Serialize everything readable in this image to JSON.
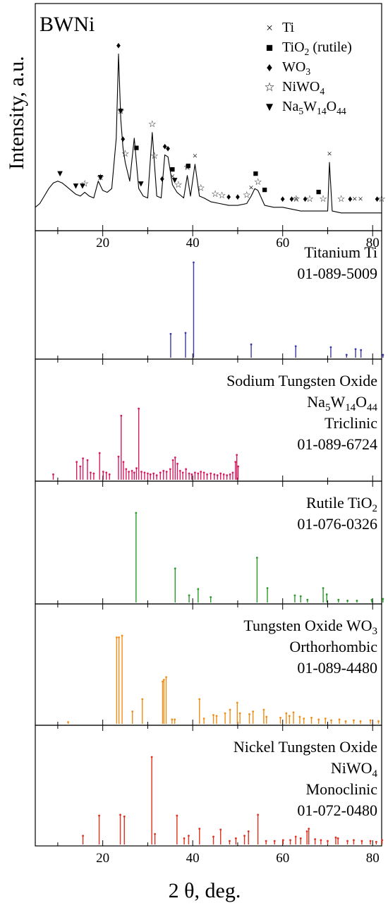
{
  "figure": {
    "x_label": "2 θ, deg.",
    "x_ticks": [
      20,
      40,
      60,
      80
    ]
  },
  "chart_data": {
    "type": "line",
    "xlim": [
      5,
      82
    ],
    "xlabel": "2 θ, deg.",
    "main": {
      "title": "BWNi",
      "ylabel": "Intensity, a.u.",
      "series": [
        {
          "name": "BWNi",
          "x": [
            5,
            6,
            7,
            8,
            9,
            10,
            11,
            12,
            13,
            14,
            15,
            16,
            17,
            18,
            19,
            20,
            21,
            22,
            23,
            23.5,
            24,
            24.5,
            25,
            26,
            27,
            28,
            29,
            30,
            31,
            32,
            33,
            33.8,
            34.5,
            35.5,
            36.5,
            38,
            38.8,
            39.5,
            40.5,
            41.5,
            42.5,
            44,
            46,
            48,
            50,
            52,
            53,
            53.8,
            54.5,
            56,
            58,
            60,
            62,
            64,
            66,
            68,
            70,
            70.4,
            71,
            73,
            75,
            77,
            79,
            81,
            82
          ],
          "y": [
            8,
            10,
            14,
            18,
            21,
            22,
            21,
            19,
            17,
            15,
            14,
            16,
            14,
            13,
            22,
            17,
            16,
            18,
            45,
            90,
            55,
            40,
            32,
            22,
            45,
            18,
            14,
            13,
            48,
            14,
            13,
            36,
            35,
            20,
            16,
            13,
            25,
            14,
            31,
            14,
            13,
            11,
            10,
            9,
            9,
            10,
            14,
            18,
            17,
            9,
            8,
            8,
            7,
            6,
            6,
            6,
            6,
            32,
            6,
            5,
            5,
            5,
            5,
            5,
            5
          ]
        }
      ],
      "legend": [
        {
          "marker": "×",
          "label": "Ti"
        },
        {
          "marker": "■",
          "label": "TiO",
          "sub": "2",
          "tail": " (rutile)"
        },
        {
          "marker": "♦",
          "label": "WO",
          "sub": "3",
          "tail": ""
        },
        {
          "marker": "☆",
          "label": "NiWO",
          "sub": "4",
          "tail": ""
        },
        {
          "marker": "▼",
          "label": "Na",
          "sub": "5",
          "mid": "W",
          "sub2": "14",
          "mid2": "O",
          "sub3": "44"
        }
      ],
      "annotations": [
        {
          "marker": "×",
          "x": [
            35.5,
            38.8,
            40.5,
            53,
            63,
            70.4,
            76,
            77.3
          ]
        },
        {
          "marker": "■",
          "x": [
            27.5,
            35.5,
            39,
            54,
            56,
            68
          ]
        },
        {
          "marker": "♦",
          "x": [
            23.5,
            24.5,
            33.2,
            33.8,
            34.5,
            48,
            50,
            60,
            62,
            65,
            75,
            81
          ]
        },
        {
          "marker": "☆",
          "x": [
            16,
            19.5,
            24,
            25,
            31,
            31.5,
            36.8,
            38.8,
            41.8,
            45,
            46.5,
            52,
            54.5,
            63,
            66,
            69,
            73,
            82
          ]
        },
        {
          "marker": "▼",
          "x": [
            10.5,
            14,
            15.5,
            19.5,
            24,
            28.5,
            36
          ]
        }
      ]
    },
    "references": [
      {
        "name_lines": [
          [
            "Titanium Ti"
          ],
          [
            "01-089-5009"
          ]
        ],
        "color": "#3a3aa8",
        "sticks": [
          [
            35.1,
            25
          ],
          [
            38.4,
            26
          ],
          [
            40.2,
            100
          ],
          [
            53.0,
            14
          ],
          [
            62.9,
            12
          ],
          [
            70.7,
            11
          ],
          [
            74.2,
            3
          ],
          [
            76.2,
            9
          ],
          [
            77.4,
            8
          ],
          [
            82.3,
            3
          ]
        ]
      },
      {
        "name_lines": [
          [
            "Sodium Tungsten Oxide"
          ],
          [
            "Na",
            "5",
            "W",
            "14",
            "O",
            "44"
          ],
          [
            "Triclinic"
          ],
          [
            "01-089-6724"
          ]
        ],
        "color": "#d81b60",
        "sticks": [
          [
            9.0,
            6
          ],
          [
            14.2,
            20
          ],
          [
            15.0,
            15
          ],
          [
            15.6,
            24
          ],
          [
            16.6,
            22
          ],
          [
            17.3,
            8
          ],
          [
            18.0,
            7
          ],
          [
            19.3,
            30
          ],
          [
            20.1,
            9
          ],
          [
            20.8,
            8
          ],
          [
            21.5,
            6
          ],
          [
            23.5,
            26
          ],
          [
            24.1,
            72
          ],
          [
            24.6,
            20
          ],
          [
            25.2,
            12
          ],
          [
            25.8,
            9
          ],
          [
            26.5,
            10
          ],
          [
            27.0,
            8
          ],
          [
            27.5,
            13
          ],
          [
            28.0,
            80
          ],
          [
            28.6,
            9
          ],
          [
            29.3,
            8
          ],
          [
            30.0,
            7
          ],
          [
            30.6,
            6
          ],
          [
            31.3,
            7
          ],
          [
            32.0,
            5
          ],
          [
            32.8,
            8
          ],
          [
            33.5,
            10
          ],
          [
            34.2,
            9
          ],
          [
            35.0,
            12
          ],
          [
            35.6,
            22
          ],
          [
            36.1,
            25
          ],
          [
            36.6,
            18
          ],
          [
            37.2,
            10
          ],
          [
            37.8,
            8
          ],
          [
            38.5,
            12
          ],
          [
            39.2,
            7
          ],
          [
            39.8,
            6
          ],
          [
            40.5,
            8
          ],
          [
            41.2,
            7
          ],
          [
            41.8,
            9
          ],
          [
            42.5,
            8
          ],
          [
            43.2,
            6
          ],
          [
            44.0,
            7
          ],
          [
            44.8,
            6
          ],
          [
            45.5,
            5
          ],
          [
            46.2,
            7
          ],
          [
            46.9,
            6
          ],
          [
            47.6,
            5
          ],
          [
            48.3,
            6
          ],
          [
            48.9,
            8
          ],
          [
            49.5,
            20
          ],
          [
            49.8,
            28
          ],
          [
            50.1,
            15
          ]
        ]
      },
      {
        "name_lines": [
          [
            "Rutile TiO",
            "2"
          ],
          [
            "01-076-0326"
          ]
        ],
        "color": "#2b9a2b",
        "sticks": [
          [
            27.4,
            100
          ],
          [
            36.1,
            38
          ],
          [
            39.2,
            8
          ],
          [
            41.2,
            15
          ],
          [
            44.0,
            6
          ],
          [
            54.3,
            50
          ],
          [
            56.6,
            16
          ],
          [
            62.7,
            8
          ],
          [
            64.0,
            7
          ],
          [
            65.5,
            3
          ],
          [
            69.0,
            16
          ],
          [
            69.8,
            9
          ],
          [
            72.4,
            3
          ],
          [
            74.4,
            2
          ],
          [
            76.5,
            2
          ],
          [
            79.8,
            3
          ],
          [
            82.3,
            4
          ]
        ]
      },
      {
        "name_lines": [
          [
            "Tungsten Oxide WO",
            "3"
          ],
          [
            "Orthorhombic"
          ],
          [
            "01-089-4480"
          ]
        ],
        "color": "#f28c14",
        "sticks": [
          [
            12.3,
            2
          ],
          [
            23.1,
            98
          ],
          [
            23.6,
            98
          ],
          [
            24.3,
            100
          ],
          [
            26.6,
            14
          ],
          [
            28.8,
            28
          ],
          [
            33.3,
            48
          ],
          [
            33.6,
            50
          ],
          [
            34.1,
            53
          ],
          [
            35.4,
            5
          ],
          [
            36.0,
            5
          ],
          [
            41.5,
            28
          ],
          [
            42.5,
            6
          ],
          [
            44.6,
            10
          ],
          [
            45.3,
            9
          ],
          [
            47.2,
            12
          ],
          [
            48.3,
            16
          ],
          [
            49.9,
            24
          ],
          [
            50.5,
            12
          ],
          [
            52.6,
            11
          ],
          [
            53.4,
            14
          ],
          [
            55.8,
            16
          ],
          [
            56.4,
            8
          ],
          [
            59.5,
            7
          ],
          [
            60.8,
            12
          ],
          [
            61.5,
            9
          ],
          [
            62.4,
            13
          ],
          [
            63.8,
            8
          ],
          [
            64.7,
            6
          ],
          [
            66.4,
            7
          ],
          [
            68.0,
            5
          ],
          [
            69.5,
            6
          ],
          [
            70.8,
            4
          ],
          [
            72.6,
            5
          ],
          [
            74.0,
            3
          ],
          [
            75.8,
            4
          ],
          [
            77.3,
            3
          ],
          [
            79.5,
            4
          ],
          [
            81.3,
            3
          ]
        ]
      },
      {
        "name_lines": [
          [
            "Nickel Tungsten Oxide"
          ],
          [
            "NiWO",
            "4"
          ],
          [
            "Monoclinic"
          ],
          [
            "01-072-0480"
          ]
        ],
        "color": "#e0301e",
        "sticks": [
          [
            15.6,
            10
          ],
          [
            19.2,
            33
          ],
          [
            23.9,
            34
          ],
          [
            24.8,
            32
          ],
          [
            30.9,
            100
          ],
          [
            31.6,
            12
          ],
          [
            36.5,
            33
          ],
          [
            38.1,
            7
          ],
          [
            39.1,
            10
          ],
          [
            41.5,
            18
          ],
          [
            44.6,
            9
          ],
          [
            46.2,
            17
          ],
          [
            48.2,
            4
          ],
          [
            49.6,
            7
          ],
          [
            51.5,
            10
          ],
          [
            52.4,
            15
          ],
          [
            54.5,
            34
          ],
          [
            56.3,
            4
          ],
          [
            58.2,
            4
          ],
          [
            60.1,
            5
          ],
          [
            61.7,
            5
          ],
          [
            62.9,
            9
          ],
          [
            64.0,
            7
          ],
          [
            65.4,
            15
          ],
          [
            65.8,
            18
          ],
          [
            67.2,
            6
          ],
          [
            68.5,
            5
          ],
          [
            70.0,
            4
          ],
          [
            71.8,
            8
          ],
          [
            72.3,
            7
          ],
          [
            74.4,
            4
          ],
          [
            75.8,
            5
          ],
          [
            77.6,
            4
          ],
          [
            79.5,
            4
          ],
          [
            80.8,
            3
          ],
          [
            82.1,
            5
          ]
        ]
      }
    ]
  }
}
